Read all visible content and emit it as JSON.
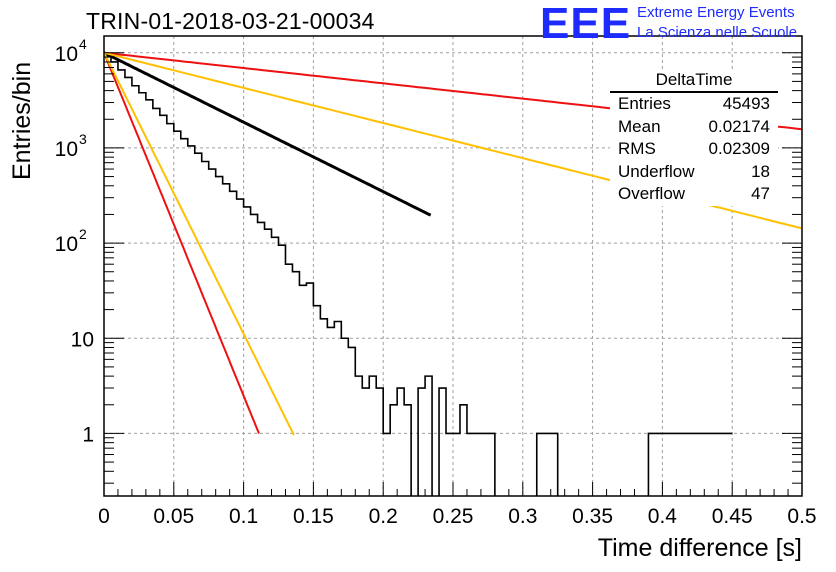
{
  "header": {
    "title": "TRIN-01-2018-03-21-00034",
    "logo_text": "EEE",
    "logo_line1": "Extreme Energy Events",
    "logo_line2": "La Scienza nelle Scuole"
  },
  "stats": {
    "name": "DeltaTime",
    "rows": [
      {
        "label": "Entries",
        "value": "45493"
      },
      {
        "label": "Mean",
        "value": "0.02174"
      },
      {
        "label": "RMS",
        "value": "0.02309"
      },
      {
        "label": "Underflow",
        "value": "18"
      },
      {
        "label": "Overflow",
        "value": "47"
      }
    ]
  },
  "chart_data": {
    "type": "line",
    "title": "TRIN-01-2018-03-21-00034",
    "xlabel": "Time difference [s]",
    "ylabel": "Entries/bin",
    "xlim": [
      0,
      0.5
    ],
    "ylim": [
      0.22,
      15000
    ],
    "yscale": "log",
    "grid": true,
    "x_ticks": [
      "0",
      "0.05",
      "0.1",
      "0.15",
      "0.2",
      "0.25",
      "0.3",
      "0.35",
      "0.4",
      "0.45",
      "0.5"
    ],
    "y_ticks": [
      {
        "value": 1,
        "label": "1"
      },
      {
        "value": 10,
        "label": "10"
      },
      {
        "value": 100,
        "label": "10^2"
      },
      {
        "value": 1000,
        "label": "10^3"
      },
      {
        "value": 10000,
        "label": "10^4"
      }
    ],
    "histogram": {
      "bin_width": 0.005,
      "values": [
        9200,
        8000,
        6600,
        5500,
        4500,
        3800,
        3200,
        2600,
        2200,
        1800,
        1500,
        1250,
        1050,
        880,
        720,
        600,
        500,
        420,
        350,
        290,
        240,
        200,
        165,
        140,
        115,
        95,
        60,
        50,
        36,
        38,
        22,
        16,
        13,
        15,
        10,
        8,
        4,
        3,
        4,
        3,
        1,
        2,
        3,
        2,
        0,
        3,
        4,
        0,
        3,
        1,
        1,
        2,
        1,
        1,
        1,
        1,
        0,
        0,
        0,
        0,
        0,
        0,
        1,
        1,
        1,
        0,
        0,
        0,
        0,
        0,
        0,
        0,
        0,
        0,
        0,
        0,
        0,
        0,
        1,
        1,
        1,
        1,
        1,
        1,
        1,
        1,
        1,
        1,
        1,
        1
      ]
    },
    "series": [
      {
        "kind": "fit",
        "color": "#000000",
        "A": 10000,
        "slope": -16.8,
        "x_range": [
          0,
          0.234
        ]
      },
      {
        "kind": "envelope",
        "color": "#ee1111",
        "A": 10000,
        "slope": -83.0,
        "x_range": [
          0,
          0.111
        ]
      },
      {
        "kind": "envelope",
        "color": "#ffc000",
        "A": 10000,
        "slope": -68.0,
        "x_range": [
          0,
          0.136
        ]
      },
      {
        "kind": "envelope",
        "color": "#ee1111",
        "A": 10000,
        "slope": -3.7,
        "x_range": [
          0,
          0.5
        ]
      },
      {
        "kind": "envelope",
        "color": "#ffc000",
        "A": 10000,
        "slope": -8.5,
        "x_range": [
          0,
          0.5
        ]
      }
    ]
  }
}
